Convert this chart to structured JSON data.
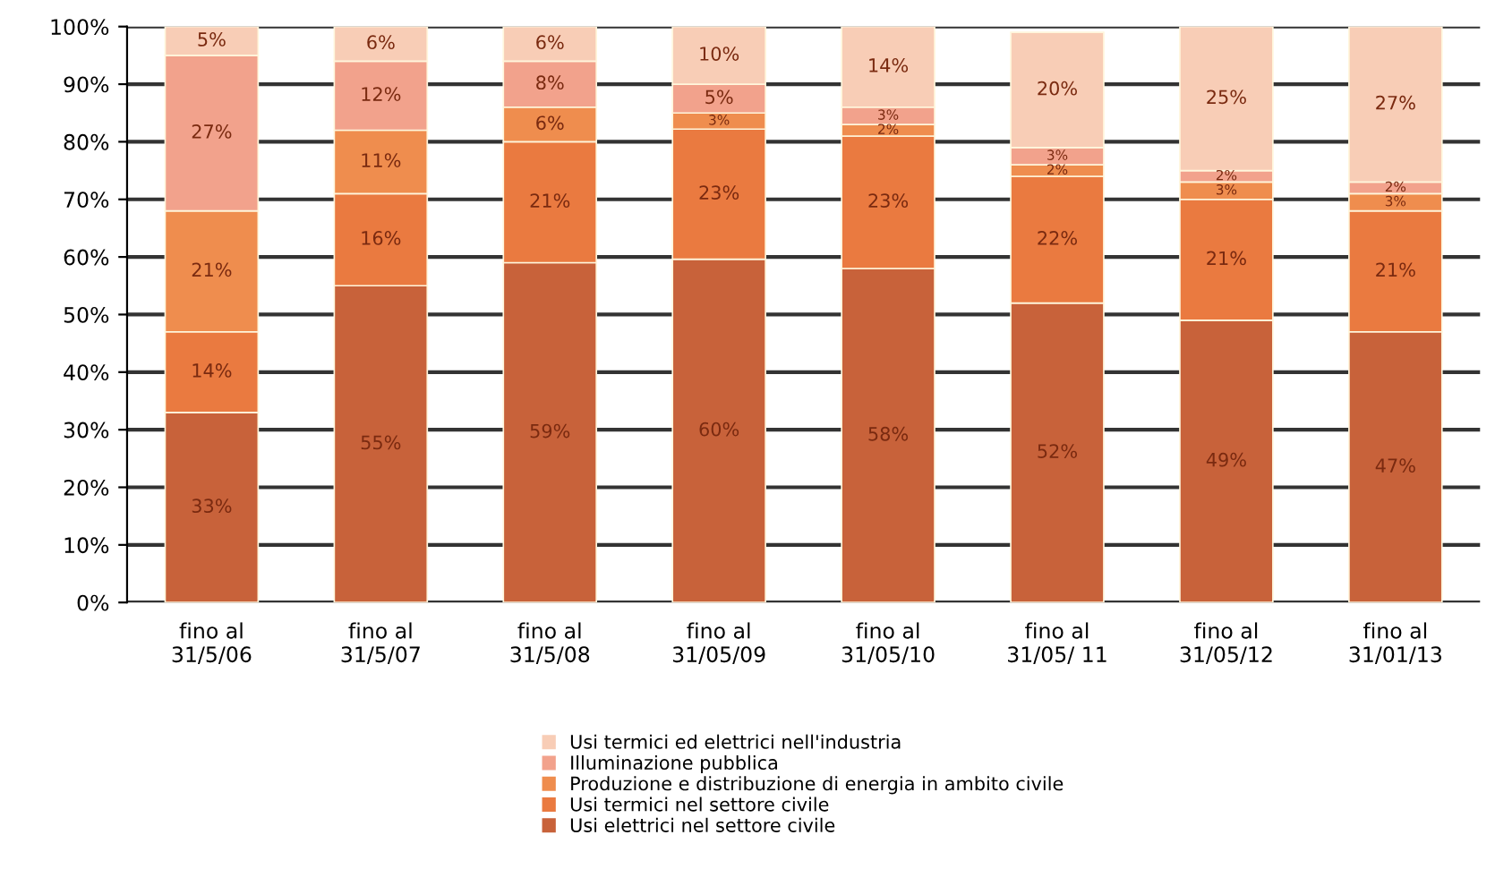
{
  "chart_data": {
    "type": "bar",
    "stacked": true,
    "categories": [
      "fino al\n31/5/06",
      "fino al\n31/5/07",
      "fino al\n31/5/08",
      "fino al\n31/05/09",
      "fino al\n31/05/10",
      "fino al\n31/05/ 11",
      "fino al\n31/05/12",
      "fino al\n31/01/13"
    ],
    "series": [
      {
        "name": "Usi elettrici nel settore civile",
        "color": "#c8623a",
        "values": [
          33,
          55,
          59,
          59.6,
          58,
          52,
          49,
          47
        ],
        "value_labels": [
          "33%",
          "55%",
          "59%",
          "60%",
          "58%",
          "52%",
          "49%",
          "47%"
        ]
      },
      {
        "name": "Usi termici nel settore civile",
        "color": "#ea7a40",
        "values": [
          14,
          16,
          21,
          22.6,
          23,
          22,
          21,
          21
        ],
        "value_labels": [
          "14%",
          "16%",
          "21%",
          "23%",
          "23%",
          "22%",
          "21%",
          "21%"
        ]
      },
      {
        "name": "Produzione e distribuzione di energia in ambito civile",
        "color": "#ef8d4e",
        "values": [
          21,
          11,
          6,
          2.8,
          2,
          2,
          3,
          3
        ],
        "value_labels": [
          "21%",
          "11%",
          "6%",
          "3%",
          "2%",
          "2%",
          "3%",
          "3%"
        ]
      },
      {
        "name": "Illuminazione pubblica",
        "color": "#f2a28c",
        "values": [
          27,
          12,
          8,
          5,
          3,
          3,
          2,
          2
        ],
        "value_labels": [
          "27%",
          "12%",
          "8%",
          "5%",
          "3%",
          "3%",
          "2%",
          "2%"
        ]
      },
      {
        "name": "Usi termici ed elettrici nell'industria",
        "color": "#f8cdb6",
        "values": [
          5,
          6,
          6,
          10,
          14,
          20,
          25,
          27
        ],
        "value_labels": [
          "5%",
          "6%",
          "6%",
          "10%",
          "14%",
          "20%",
          "25%",
          "27%"
        ]
      }
    ],
    "ylim": [
      0,
      100
    ],
    "yticks": [
      {
        "value": 0,
        "label": "0%"
      },
      {
        "value": 10,
        "label": "10%"
      },
      {
        "value": 20,
        "label": "20%"
      },
      {
        "value": 30,
        "label": "30%"
      },
      {
        "value": 40,
        "label": "40%"
      },
      {
        "value": 50,
        "label": "50%"
      },
      {
        "value": 60,
        "label": "60%"
      },
      {
        "value": 70,
        "label": "70%"
      },
      {
        "value": 80,
        "label": "80%"
      },
      {
        "value": 90,
        "label": "90%"
      },
      {
        "value": 100,
        "label": "100%"
      }
    ],
    "grid": "y",
    "legend": "bottom"
  }
}
